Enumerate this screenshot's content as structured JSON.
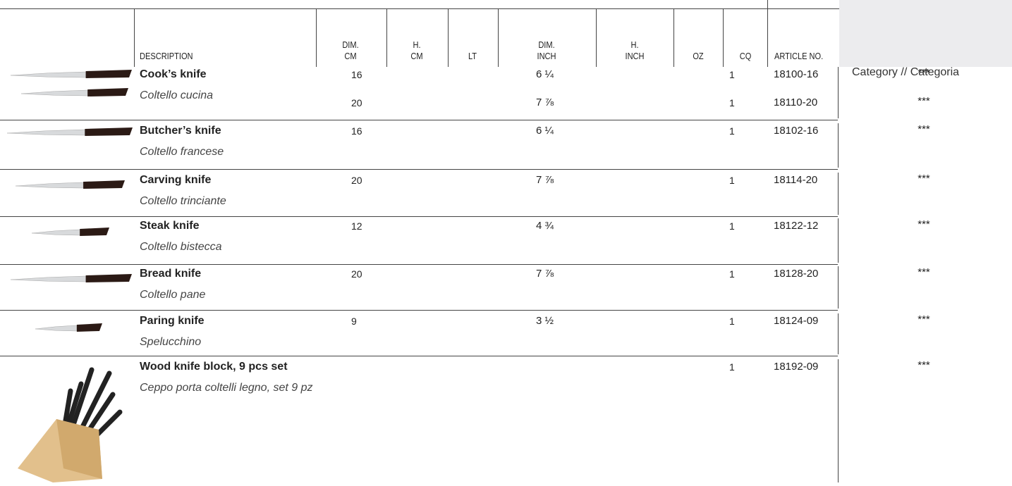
{
  "header": {
    "columns": [
      [
        "DESCRIPTION"
      ],
      [
        "DIM.",
        "CM"
      ],
      [
        "H.",
        "CM"
      ],
      [
        "LT"
      ],
      [
        "DIM.",
        "INCH"
      ],
      [
        "H.",
        "INCH"
      ],
      [
        "OZ"
      ],
      [
        "CQ"
      ],
      [
        "ARTICLE NO."
      ]
    ],
    "category": "Category // Categoria"
  },
  "products": [
    {
      "name": "Cook’s knife",
      "name_it": "Coltello cucina",
      "items": [
        {
          "dim_cm": 16,
          "dim_inch": "6 ¼",
          "cq": 1,
          "article": "18100-16",
          "category": "***"
        },
        {
          "dim_cm": 20,
          "dim_inch": "7 ⅞",
          "cq": 1,
          "article": "18110-20",
          "category": "***"
        }
      ]
    },
    {
      "name": "Butcher’s knife",
      "name_it": "Coltello francese",
      "items": [
        {
          "dim_cm": 16,
          "dim_inch": "6 ¼",
          "cq": 1,
          "article": "18102-16",
          "category": "***"
        }
      ]
    },
    {
      "name": "Carving knife",
      "name_it": "Coltello trinciante",
      "items": [
        {
          "dim_cm": 20,
          "dim_inch": "7 ⅞",
          "cq": 1,
          "article": "18114-20",
          "category": "***"
        }
      ]
    },
    {
      "name": "Steak knife",
      "name_it": "Coltello bistecca",
      "items": [
        {
          "dim_cm": 12,
          "dim_inch": "4 ¾",
          "cq": 1,
          "article": "18122-12",
          "category": "***"
        }
      ]
    },
    {
      "name": "Bread knife",
      "name_it": "Coltello pane",
      "items": [
        {
          "dim_cm": 20,
          "dim_inch": "7 ⅞",
          "cq": 1,
          "article": "18128-20",
          "category": "***"
        }
      ]
    },
    {
      "name": "Paring knife",
      "name_it": "Spelucchino",
      "items": [
        {
          "dim_cm": 9,
          "dim_inch": "3 ½",
          "cq": 1,
          "article": "18124-09",
          "category": "***"
        }
      ]
    },
    {
      "name": "Wood knife block, 9 pcs set",
      "name_it": "Ceppo porta coltelli legno, set 9 pz",
      "items": [
        {
          "cq": 1,
          "article": "18192-09",
          "category": "***"
        }
      ]
    }
  ]
}
